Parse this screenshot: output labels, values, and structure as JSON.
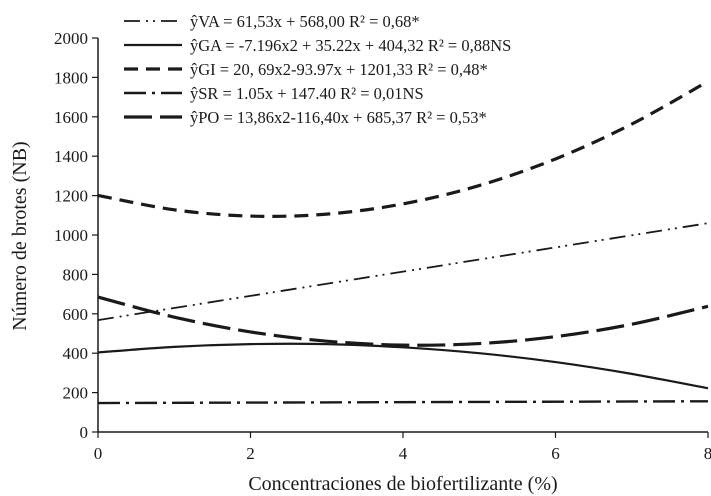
{
  "chart_data": {
    "type": "line",
    "xlabel": "Concentraciones de biofertilizante (%)",
    "ylabel": "Número de brotes (NB)",
    "xlim": [
      0,
      8
    ],
    "ylim": [
      0,
      2000
    ],
    "xticks": [
      0,
      2,
      4,
      6,
      8
    ],
    "yticks": [
      0,
      200,
      400,
      600,
      800,
      1000,
      1200,
      1400,
      1600,
      1800,
      2000
    ],
    "grid": false,
    "legend_position": "top",
    "series": [
      {
        "key": "VA",
        "legend_label": "ŷVA = 61,53x + 568,00  R² = 0,68*",
        "dash": "dash-dot-dot",
        "x": [
          0,
          2,
          4,
          6,
          8
        ],
        "y": [
          568,
          691,
          814,
          937,
          1060
        ]
      },
      {
        "key": "GA",
        "legend_label": "ŷGA = -7.196x2 + 35.22x + 404,32 R² = 0,88NS",
        "dash": "solid",
        "x": [
          0,
          1,
          2,
          3,
          4,
          5,
          6,
          7,
          8
        ],
        "y": [
          404,
          432,
          446,
          446,
          430,
          400,
          355,
          295,
          222
        ]
      },
      {
        "key": "GI",
        "legend_label": "ŷGI = 20, 69x2-93.97x + 1201,33  R² = 0,48*",
        "dash": "dashed",
        "x": [
          0,
          1,
          2,
          3,
          4,
          5,
          6,
          7,
          8
        ],
        "y": [
          1201,
          1128,
          1096,
          1106,
          1158,
          1251,
          1386,
          1563,
          1780
        ]
      },
      {
        "key": "SR",
        "legend_label": "ŷSR = 1.05x + 147.40 R² = 0,01NS",
        "dash": "dash-dot",
        "x": [
          0,
          8
        ],
        "y": [
          147,
          156
        ]
      },
      {
        "key": "PO",
        "legend_label": "ŷPO = 13,86x2-116,40x + 685,37  R² = 0,53*",
        "dash": "long-dash",
        "x": [
          0,
          1,
          2,
          3,
          4,
          5,
          6,
          7,
          8
        ],
        "y": [
          685,
          583,
          508,
          461,
          441,
          449,
          484,
          547,
          638
        ]
      }
    ]
  }
}
